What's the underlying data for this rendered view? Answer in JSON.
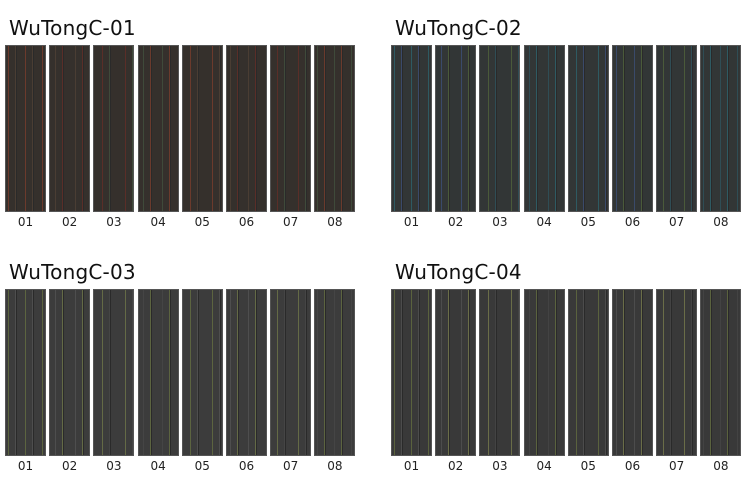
{
  "groups": [
    {
      "title": "WuTongC-01",
      "swatches": [
        "01",
        "02",
        "03",
        "04",
        "05",
        "06",
        "07",
        "08"
      ]
    },
    {
      "title": "WuTongC-02",
      "swatches": [
        "01",
        "02",
        "03",
        "04",
        "05",
        "06",
        "07",
        "08"
      ]
    },
    {
      "title": "WuTongC-03",
      "swatches": [
        "01",
        "02",
        "03",
        "04",
        "05",
        "06",
        "07",
        "08"
      ]
    },
    {
      "title": "WuTongC-04",
      "swatches": [
        "01",
        "02",
        "03",
        "04",
        "05",
        "06",
        "07",
        "08"
      ]
    }
  ]
}
